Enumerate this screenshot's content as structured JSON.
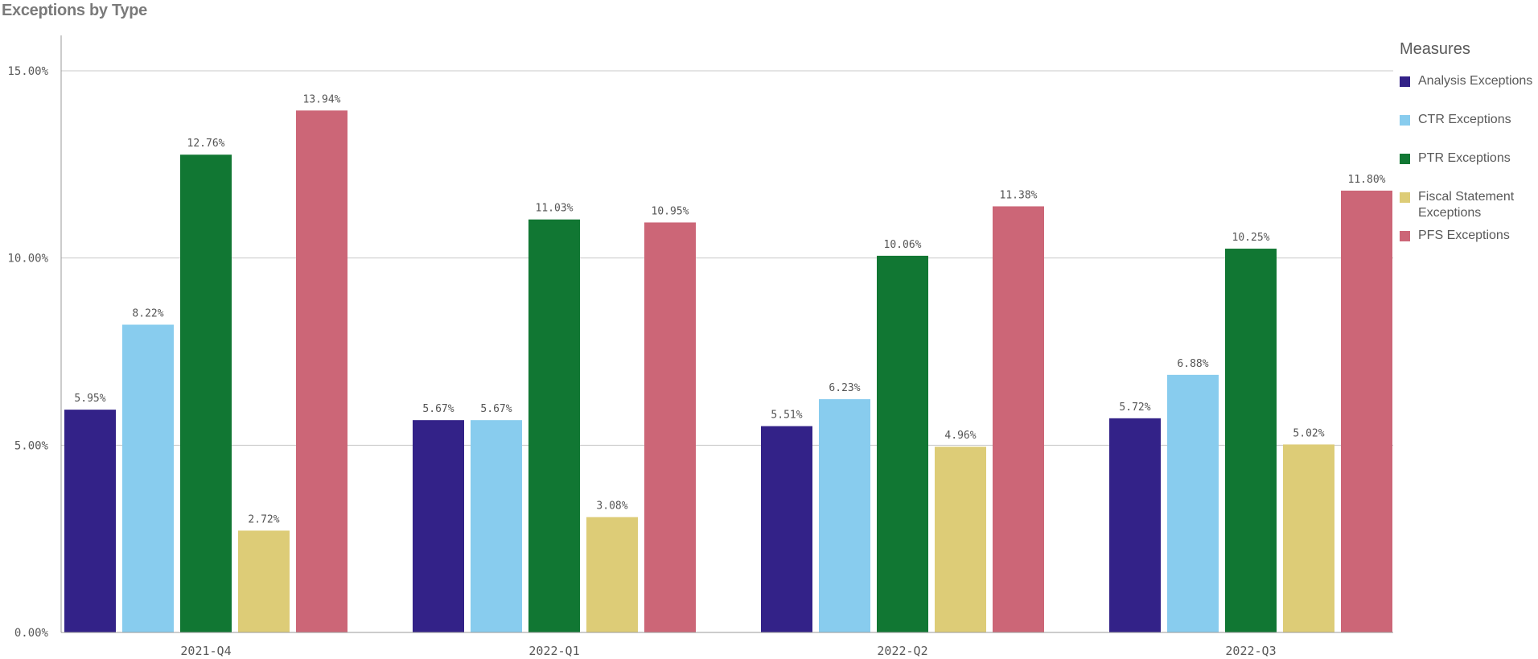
{
  "chart_data": {
    "type": "bar",
    "title": "Exceptions by Type",
    "xlabel": "",
    "ylabel": "",
    "categories": [
      "2021-Q4",
      "2022-Q1",
      "2022-Q2",
      "2022-Q3"
    ],
    "series": [
      {
        "name": "Analysis Exceptions",
        "color": "#332288",
        "values": [
          5.95,
          5.67,
          5.51,
          5.72
        ],
        "labels": [
          "5.95%",
          "5.67%",
          "5.51%",
          "5.72%"
        ]
      },
      {
        "name": "CTR Exceptions",
        "color": "#88ccee",
        "values": [
          8.22,
          5.67,
          6.23,
          6.88
        ],
        "labels": [
          "8.22%",
          "5.67%",
          "6.23%",
          "6.88%"
        ]
      },
      {
        "name": "PTR Exceptions",
        "color": "#117733",
        "values": [
          12.76,
          11.03,
          10.06,
          10.25
        ],
        "labels": [
          "12.76%",
          "11.03%",
          "10.06%",
          "10.25%"
        ]
      },
      {
        "name": "Fiscal Statement Exceptions",
        "color": "#ddcc77",
        "values": [
          2.72,
          3.08,
          4.96,
          5.02
        ],
        "labels": [
          "2.72%",
          "3.08%",
          "4.96%",
          "5.02%"
        ]
      },
      {
        "name": "PFS Exceptions",
        "color": "#cc6677",
        "values": [
          13.94,
          10.95,
          11.38,
          11.8
        ],
        "labels": [
          "13.94%",
          "10.95%",
          "11.38%",
          "11.80%"
        ]
      }
    ],
    "ylim": [
      0,
      15
    ],
    "yticks": [
      0,
      5,
      10,
      15
    ],
    "ytick_labels": [
      "0.00%",
      "5.00%",
      "10.00%",
      "15.00%"
    ],
    "grid": true,
    "legend": {
      "title": "Measures",
      "position": "right"
    }
  }
}
